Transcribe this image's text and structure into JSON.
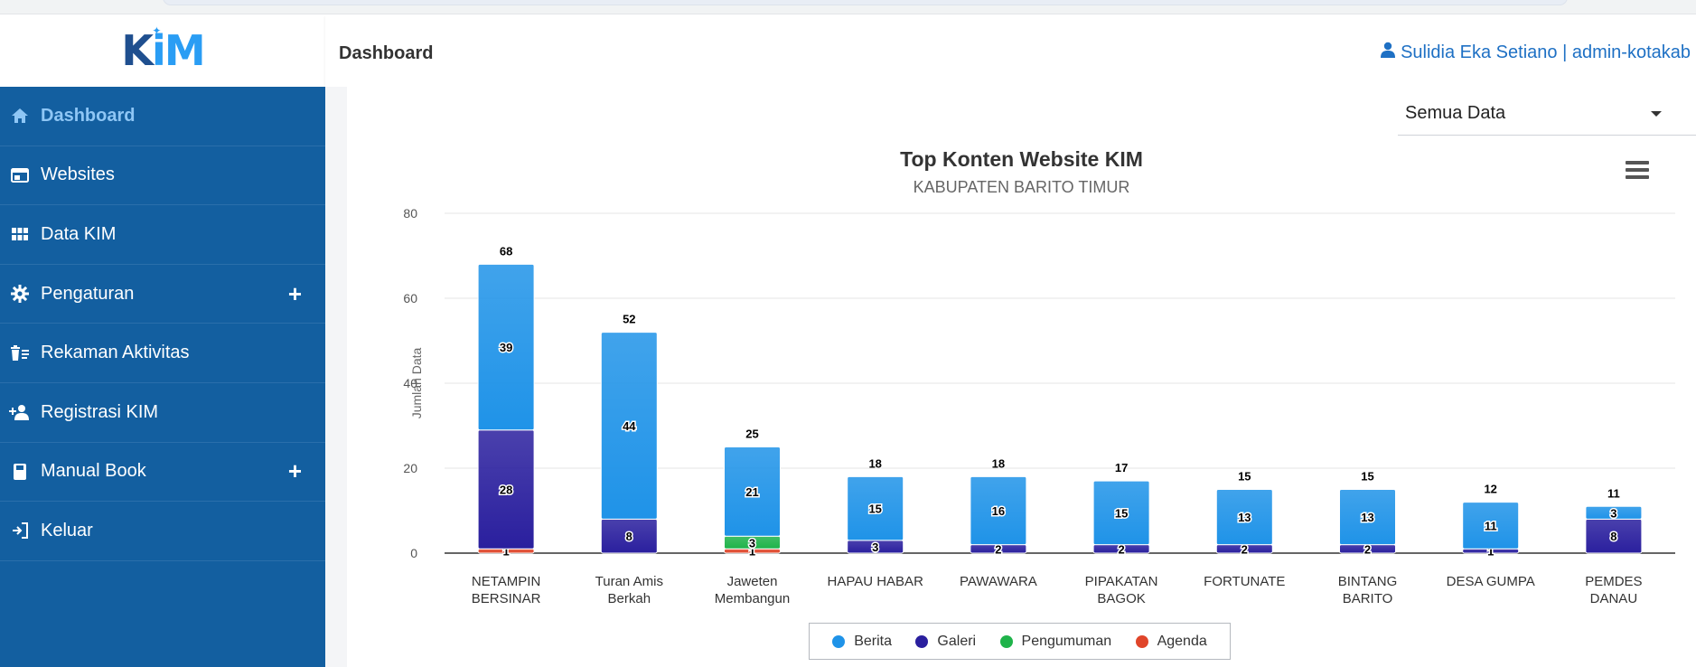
{
  "app": {
    "logo_text_k": "K",
    "logo_text_i": "i",
    "logo_text_m": "M"
  },
  "header": {
    "title": "Dashboard",
    "user": "Sulidia Eka Setiano | admin-kotakab"
  },
  "sidebar": {
    "items": [
      {
        "label": "Dashboard",
        "icon": "home-icon",
        "active": true
      },
      {
        "label": "Websites",
        "icon": "browser-window-icon"
      },
      {
        "label": "Data KIM",
        "icon": "grid-icon"
      },
      {
        "label": "Pengaturan",
        "icon": "gear-icon",
        "expandable": true
      },
      {
        "label": "Rekaman Aktivitas",
        "icon": "trash-list-icon"
      },
      {
        "label": "Registrasi KIM",
        "icon": "user-plus-icon"
      },
      {
        "label": "Manual Book",
        "icon": "book-icon",
        "expandable": true
      },
      {
        "label": "Keluar",
        "icon": "sign-out-icon"
      }
    ],
    "expand_symbol": "+"
  },
  "filter": {
    "selected": "Semua Data"
  },
  "colors": {
    "Berita": "#1f93e8",
    "Galeri": "#2a1f9e",
    "Pengumuman": "#1fb34a",
    "Agenda": "#e0452a",
    "sidebar": "#135fa0"
  },
  "chart_data": {
    "type": "bar",
    "stacked": true,
    "title": "Top Konten Website KIM",
    "subtitle": "KABUPATEN BARITO TIMUR",
    "ylabel": "Jumlah Data",
    "ylim": [
      0,
      80
    ],
    "yticks": [
      0,
      20,
      40,
      60,
      80
    ],
    "grid": true,
    "legend": "bottom",
    "categories": [
      [
        "NETAMPIN",
        "BERSINAR"
      ],
      [
        "Turan Amis",
        "Berkah"
      ],
      [
        "Jaweten",
        "Membangun"
      ],
      [
        "HAPAU HABAR"
      ],
      [
        "PAWAWARA"
      ],
      [
        "PIPAKATAN",
        "BAGOK"
      ],
      [
        "FORTUNATE"
      ],
      [
        "BINTANG",
        "BARITO"
      ],
      [
        "DESA GUMPA"
      ],
      [
        "PEMDES",
        "DANAU"
      ]
    ],
    "totals": [
      68,
      52,
      25,
      18,
      18,
      17,
      15,
      15,
      12,
      11
    ],
    "series": [
      {
        "name": "Agenda",
        "values": [
          1,
          0,
          1,
          0,
          0,
          0,
          0,
          0,
          0,
          0
        ]
      },
      {
        "name": "Pengumuman",
        "values": [
          0,
          0,
          3,
          0,
          0,
          0,
          0,
          0,
          0,
          0
        ]
      },
      {
        "name": "Galeri",
        "values": [
          28,
          8,
          0,
          3,
          2,
          2,
          2,
          2,
          1,
          8
        ]
      },
      {
        "name": "Berita",
        "values": [
          39,
          44,
          21,
          15,
          16,
          15,
          13,
          13,
          11,
          3
        ]
      }
    ],
    "legend_order": [
      "Berita",
      "Galeri",
      "Pengumuman",
      "Agenda"
    ]
  }
}
